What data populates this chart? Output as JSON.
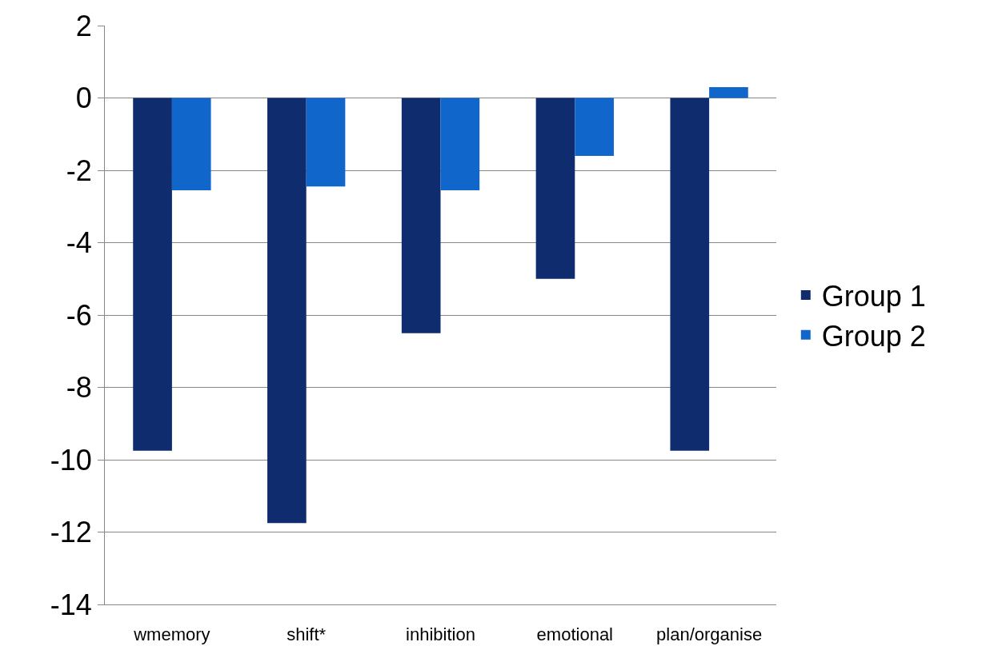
{
  "chart_data": {
    "type": "bar",
    "categories": [
      "wmemory",
      "shift*",
      "inhibition",
      "emotional",
      "plan/organise"
    ],
    "series": [
      {
        "name": "Group 1",
        "color": "#0f2d6e",
        "values": [
          -9.75,
          -11.75,
          -6.5,
          -5,
          -9.75
        ]
      },
      {
        "name": "Group 2",
        "color": "#1166cc",
        "values": [
          -2.55,
          -2.45,
          -2.55,
          -1.6,
          0.3
        ]
      }
    ],
    "ylim": [
      -14,
      2
    ],
    "yticks": [
      -14,
      -12,
      -10,
      -8,
      -6,
      -4,
      -2,
      0,
      2
    ],
    "grid": "y",
    "legend": "right"
  }
}
